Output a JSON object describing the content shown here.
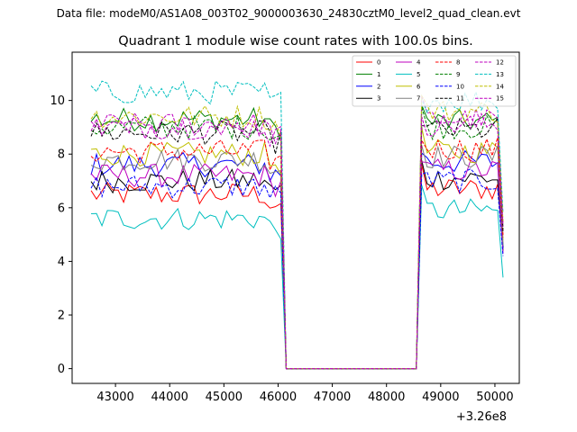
{
  "page": {
    "suptitle": "Data file: modeM0/AS1A08_003T02_9000003630_24830cztM0_level2_quad_clean.evt"
  },
  "chart_data": {
    "type": "line",
    "title": "Quadrant 1 module wise count rates with 100.0s bins.",
    "xlabel": "",
    "ylabel": "",
    "xlim": [
      42200,
      50450
    ],
    "ylim": [
      -0.55,
      11.8
    ],
    "x_offset_label": "+3.26e8",
    "x_ticks": [
      43000,
      44000,
      45000,
      46000,
      47000,
      48000,
      49000,
      50000
    ],
    "x_tick_labels": [
      "43000",
      "44000",
      "45000",
      "46000",
      "47000",
      "48000",
      "49000",
      "50000"
    ],
    "y_ticks": [
      0,
      2,
      4,
      6,
      8,
      10
    ],
    "y_tick_labels": [
      "0",
      "2",
      "4",
      "6",
      "8",
      "10"
    ],
    "legend": {
      "placement": "top-right",
      "columns": 4
    },
    "bin_width": 100,
    "segment1": {
      "start": 42550,
      "end": 46050
    },
    "drop_at": 46150,
    "gap": {
      "start": 46150,
      "end": 48550
    },
    "segment2": {
      "start": 48650,
      "end": 50050
    },
    "final_point": 50150,
    "series": [
      {
        "name": "0",
        "color": "#ff0000",
        "dash": false,
        "seg1_level": 6.5,
        "seg2_level": 6.7,
        "end_value": 5.0
      },
      {
        "name": "1",
        "color": "#008000",
        "dash": false,
        "seg1_level": 9.3,
        "seg2_level": 9.2,
        "end_value": 4.5
      },
      {
        "name": "2",
        "color": "#0000ff",
        "dash": false,
        "seg1_level": 7.6,
        "seg2_level": 7.7,
        "end_value": 4.5
      },
      {
        "name": "3",
        "color": "#000000",
        "dash": false,
        "seg1_level": 7.0,
        "seg2_level": 7.1,
        "end_value": 4.4
      },
      {
        "name": "4",
        "color": "#bf00bf",
        "dash": false,
        "seg1_level": 7.2,
        "seg2_level": 7.4,
        "end_value": 4.3
      },
      {
        "name": "5",
        "color": "#00bfbf",
        "dash": false,
        "seg1_level": 5.6,
        "seg2_level": 5.9,
        "end_value": 3.4
      },
      {
        "name": "6",
        "color": "#bfbf00",
        "dash": false,
        "seg1_level": 8.0,
        "seg2_level": 8.1,
        "end_value": 4.8
      },
      {
        "name": "7",
        "color": "#808080",
        "dash": false,
        "seg1_level": 7.8,
        "seg2_level": 7.9,
        "end_value": 4.6
      },
      {
        "name": "8",
        "color": "#ff0000",
        "dash": true,
        "seg1_level": 8.1,
        "seg2_level": 8.2,
        "end_value": 4.9
      },
      {
        "name": "9",
        "color": "#008000",
        "dash": true,
        "seg1_level": 9.0,
        "seg2_level": 9.0,
        "end_value": 5.2
      },
      {
        "name": "10",
        "color": "#0000ff",
        "dash": true,
        "seg1_level": 6.8,
        "seg2_level": 7.0,
        "end_value": 4.2
      },
      {
        "name": "11",
        "color": "#000000",
        "dash": true,
        "seg1_level": 8.8,
        "seg2_level": 8.9,
        "end_value": 5.1
      },
      {
        "name": "12",
        "color": "#bf00bf",
        "dash": true,
        "seg1_level": 9.1,
        "seg2_level": 9.3,
        "end_value": 5.4
      },
      {
        "name": "13",
        "color": "#00bfbf",
        "dash": true,
        "seg1_level": 10.3,
        "seg2_level": 10.0,
        "end_value": 5.8
      },
      {
        "name": "14",
        "color": "#bfbf00",
        "dash": true,
        "seg1_level": 9.4,
        "seg2_level": 9.6,
        "end_value": 5.5
      },
      {
        "name": "15",
        "color": "#bf00bf",
        "dash": true,
        "seg1_level": 9.0,
        "seg2_level": 9.1,
        "end_value": 5.3
      }
    ]
  }
}
